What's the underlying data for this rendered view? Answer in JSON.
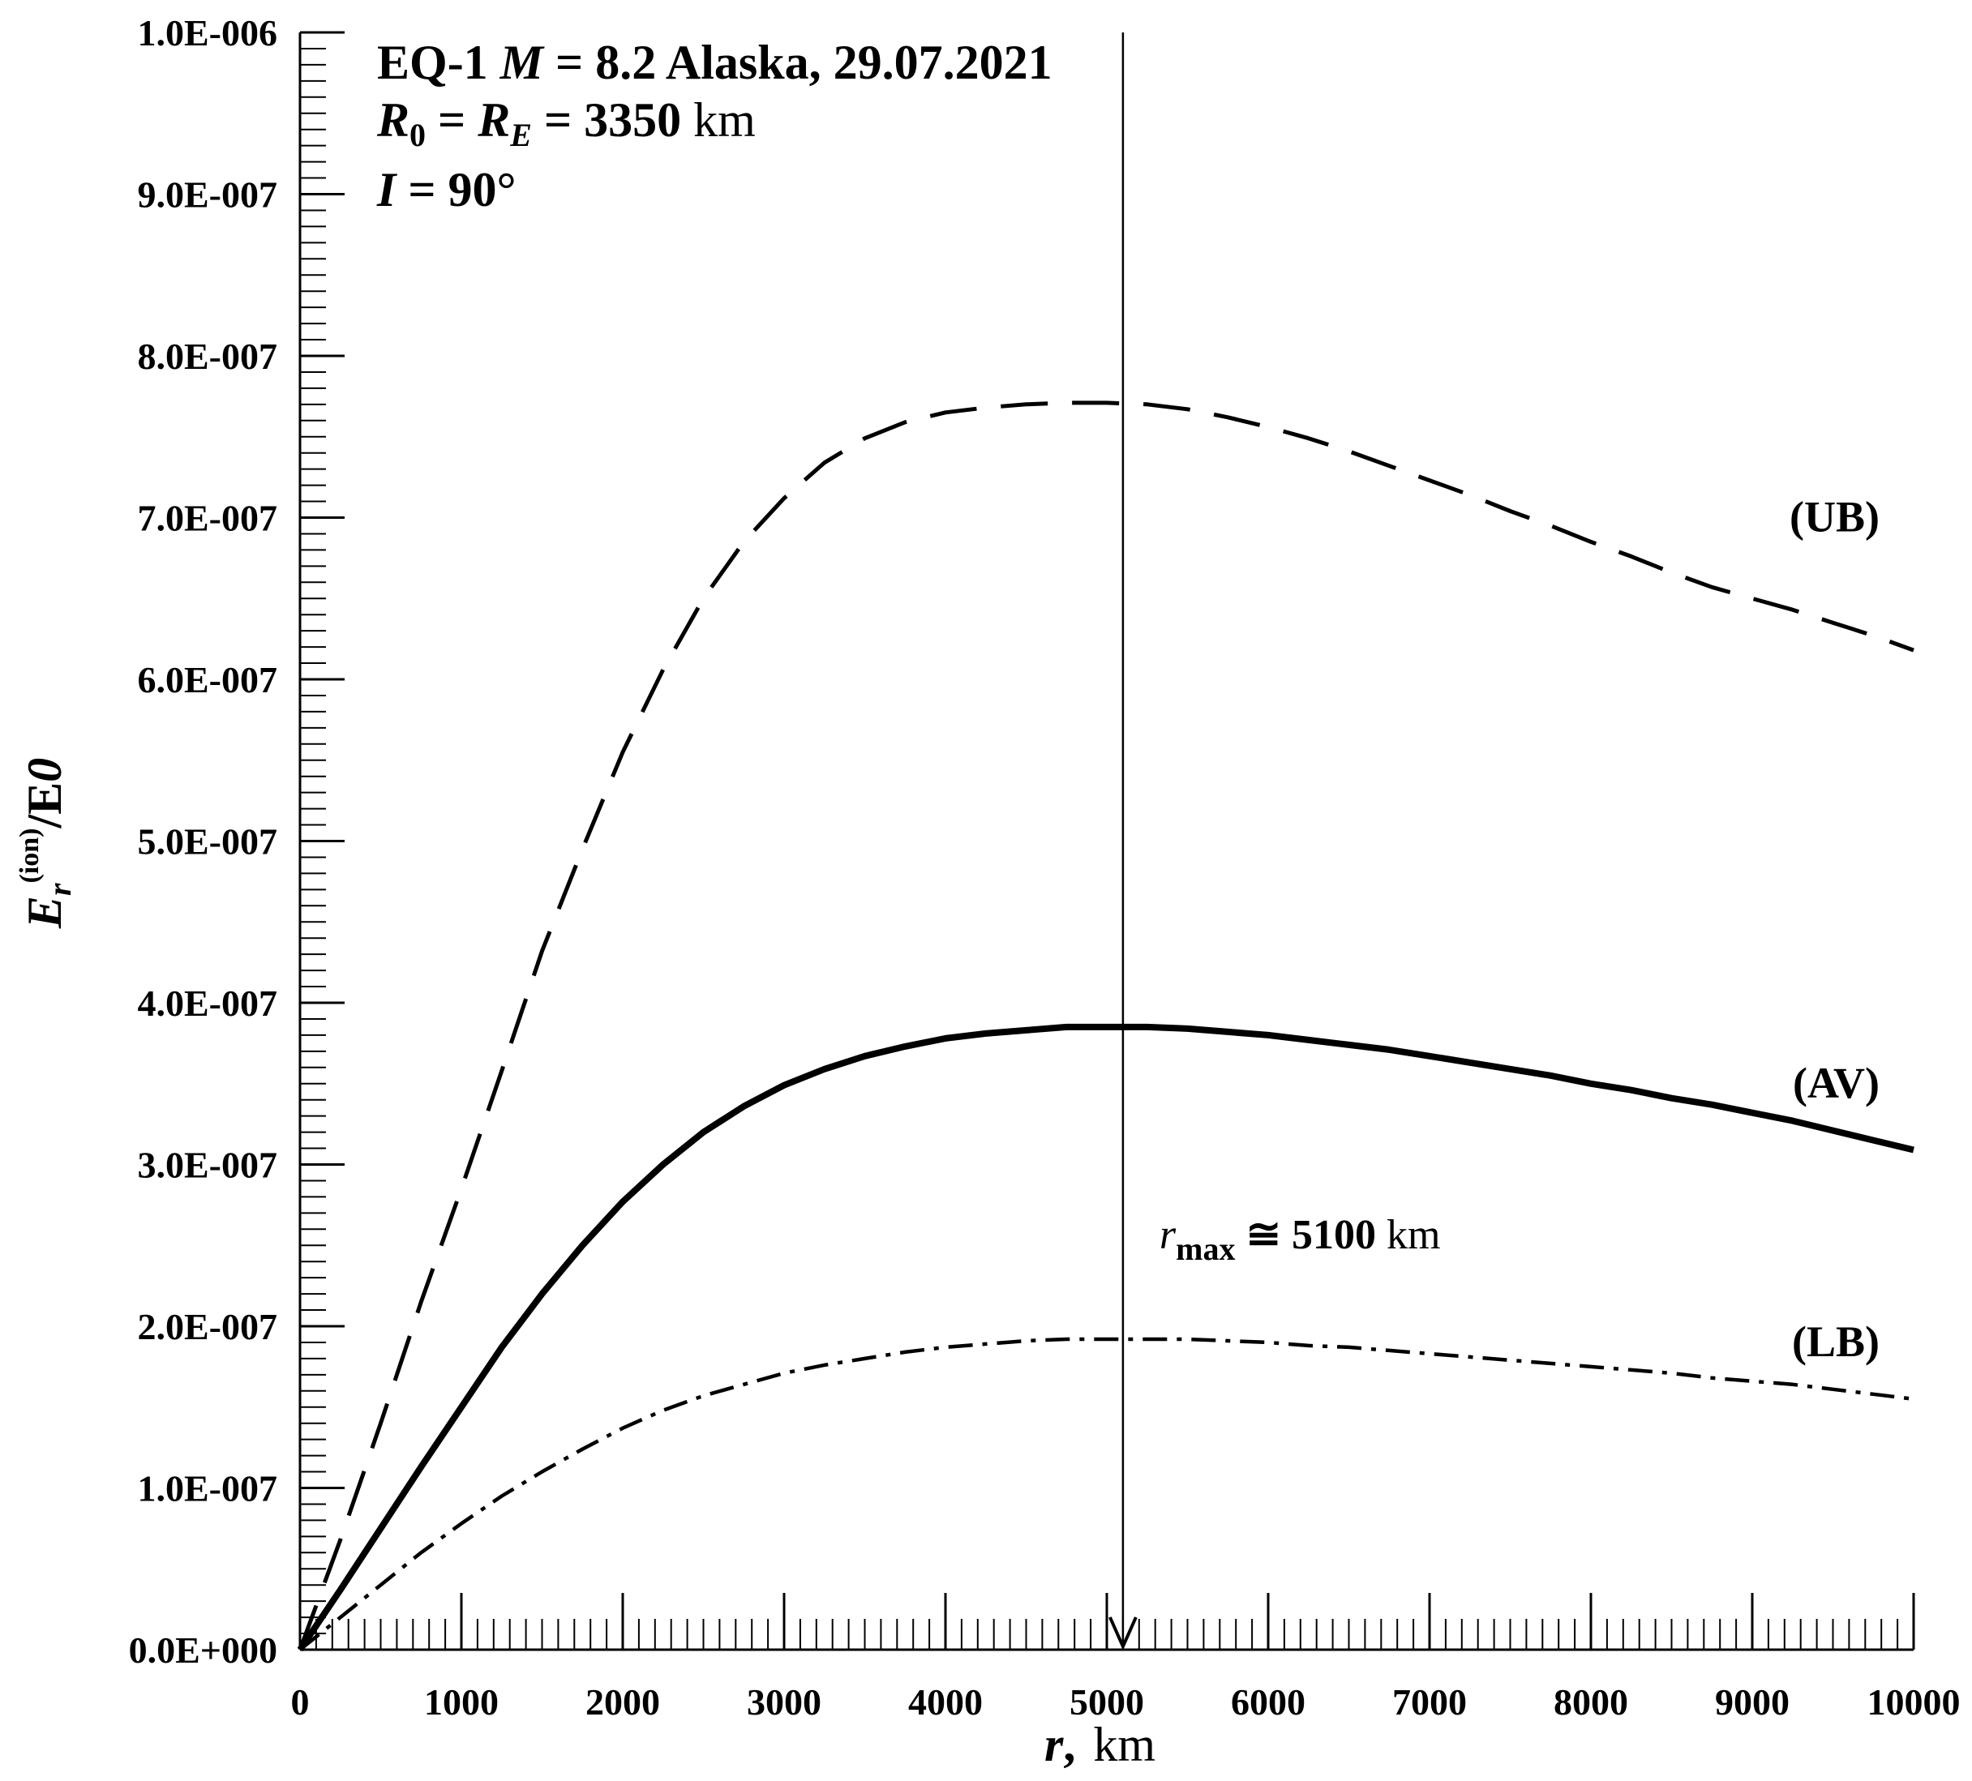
{
  "chart_data": {
    "type": "line",
    "xlabel": {
      "var": "r",
      "sep": ",",
      "unit": "km"
    },
    "ylabel": {
      "base": "E",
      "sub": "r",
      "sup": "(ion)",
      "rest": "/E",
      "rest_sub": "0"
    },
    "xlim": [
      0,
      10000
    ],
    "ylim": [
      0,
      1e-06
    ],
    "x_ticks": [
      0,
      1000,
      2000,
      3000,
      4000,
      5000,
      6000,
      7000,
      8000,
      9000,
      10000
    ],
    "x_tick_labels": [
      "0",
      "1000",
      "2000",
      "3000",
      "4000",
      "5000",
      "6000",
      "7000",
      "8000",
      "9000",
      "10000"
    ],
    "y_ticks": [
      0,
      1e-07,
      2e-07,
      3e-07,
      4e-07,
      5e-07,
      6e-07,
      7e-07,
      8e-07,
      9e-07,
      1e-06
    ],
    "y_tick_labels": [
      "0.0E+000",
      "1.0E-007",
      "2.0E-007",
      "3.0E-007",
      "4.0E-007",
      "5.0E-007",
      "6.0E-007",
      "7.0E-007",
      "8.0E-007",
      "9.0E-007",
      "1.0E-006"
    ],
    "grid": false,
    "annotation": {
      "line1_a": "EQ-1 ",
      "line1_m": "M",
      "line1_b": " = 8.2 Alaska, 29.07.2021",
      "line2_r0": "R",
      "line2_r0_sub": "0",
      "line2_eq": " = ",
      "line2_re": "R",
      "line2_re_sub": "E",
      "line2_val": " = 3350",
      "line2_unit": "  km",
      "line3_i": "I",
      "line3_val": " = 90°"
    },
    "rmax": {
      "x": 5100,
      "var": "r",
      "sub": "max",
      "text": " ≅ 5100",
      "unit": " km"
    },
    "series": [
      {
        "name": "(UB)",
        "style": "dashed",
        "x": [
          0,
          250,
          500,
          750,
          1000,
          1250,
          1500,
          1750,
          2000,
          2250,
          2500,
          2750,
          3000,
          3250,
          3500,
          3750,
          4000,
          4250,
          4500,
          4750,
          5000,
          5250,
          5500,
          5750,
          6000,
          6250,
          6500,
          6750,
          7000,
          7250,
          7500,
          7750,
          8000,
          8250,
          8500,
          8750,
          9000,
          9250,
          9500,
          9750,
          10000
        ],
        "values": [
          0,
          6.8e-08,
          1.4e-07,
          2.15e-07,
          2.85e-07,
          3.58e-07,
          4.32e-07,
          4.95e-07,
          5.55e-07,
          6.06e-07,
          6.5e-07,
          6.85e-07,
          7.12e-07,
          7.34e-07,
          7.49e-07,
          7.59e-07,
          7.65e-07,
          7.68e-07,
          7.7e-07,
          7.71e-07,
          7.71e-07,
          7.7e-07,
          7.67e-07,
          7.62e-07,
          7.56e-07,
          7.49e-07,
          7.41e-07,
          7.32e-07,
          7.23e-07,
          7.14e-07,
          7.04e-07,
          6.95e-07,
          6.85e-07,
          6.76e-07,
          6.66e-07,
          6.57e-07,
          6.5e-07,
          6.43e-07,
          6.35e-07,
          6.27e-07,
          6.18e-07
        ]
      },
      {
        "name": "(AV)",
        "style": "solid",
        "x": [
          0,
          250,
          500,
          750,
          1000,
          1250,
          1500,
          1750,
          2000,
          2250,
          2500,
          2750,
          3000,
          3250,
          3500,
          3750,
          4000,
          4250,
          4500,
          4750,
          5000,
          5250,
          5500,
          5750,
          6000,
          6250,
          6500,
          6750,
          7000,
          7250,
          7500,
          7750,
          8000,
          8250,
          8500,
          8750,
          9000,
          9250,
          9500,
          9750,
          10000
        ],
        "values": [
          0,
          3.7e-08,
          7.5e-08,
          1.13e-07,
          1.5e-07,
          1.87e-07,
          2.2e-07,
          2.5e-07,
          2.77e-07,
          3e-07,
          3.2e-07,
          3.36e-07,
          3.49e-07,
          3.59e-07,
          3.67e-07,
          3.73e-07,
          3.78e-07,
          3.81e-07,
          3.83e-07,
          3.85e-07,
          3.85e-07,
          3.85e-07,
          3.84e-07,
          3.82e-07,
          3.8e-07,
          3.77e-07,
          3.74e-07,
          3.71e-07,
          3.67e-07,
          3.63e-07,
          3.59e-07,
          3.55e-07,
          3.5e-07,
          3.46e-07,
          3.41e-07,
          3.37e-07,
          3.32e-07,
          3.27e-07,
          3.21e-07,
          3.15e-07,
          3.09e-07
        ]
      },
      {
        "name": "(LB)",
        "style": "dashdot",
        "x": [
          0,
          250,
          500,
          750,
          1000,
          1250,
          1500,
          1750,
          2000,
          2250,
          2500,
          2750,
          3000,
          3250,
          3500,
          3750,
          4000,
          4250,
          4500,
          4750,
          5000,
          5250,
          5500,
          5750,
          6000,
          6250,
          6500,
          6750,
          7000,
          7250,
          7500,
          7750,
          8000,
          8250,
          8500,
          8750,
          9000,
          9250,
          9500,
          9750,
          10000
        ],
        "values": [
          0,
          2e-08,
          4e-08,
          6e-08,
          7.8e-08,
          9.5e-08,
          1.1e-07,
          1.24e-07,
          1.37e-07,
          1.48e-07,
          1.57e-07,
          1.64e-07,
          1.71e-07,
          1.76e-07,
          1.8e-07,
          1.84e-07,
          1.87e-07,
          1.89e-07,
          1.91e-07,
          1.92e-07,
          1.92e-07,
          1.92e-07,
          1.92e-07,
          1.91e-07,
          1.9e-07,
          1.88e-07,
          1.87e-07,
          1.85e-07,
          1.83e-07,
          1.81e-07,
          1.79e-07,
          1.77e-07,
          1.75e-07,
          1.73e-07,
          1.71e-07,
          1.68e-07,
          1.66e-07,
          1.64e-07,
          1.61e-07,
          1.58e-07,
          1.55e-07
        ]
      }
    ],
    "series_label_values": [
      7e-07,
      3.5e-07,
      1.9e-07
    ],
    "colors": {
      "line": "#000000",
      "background": "#ffffff"
    }
  }
}
